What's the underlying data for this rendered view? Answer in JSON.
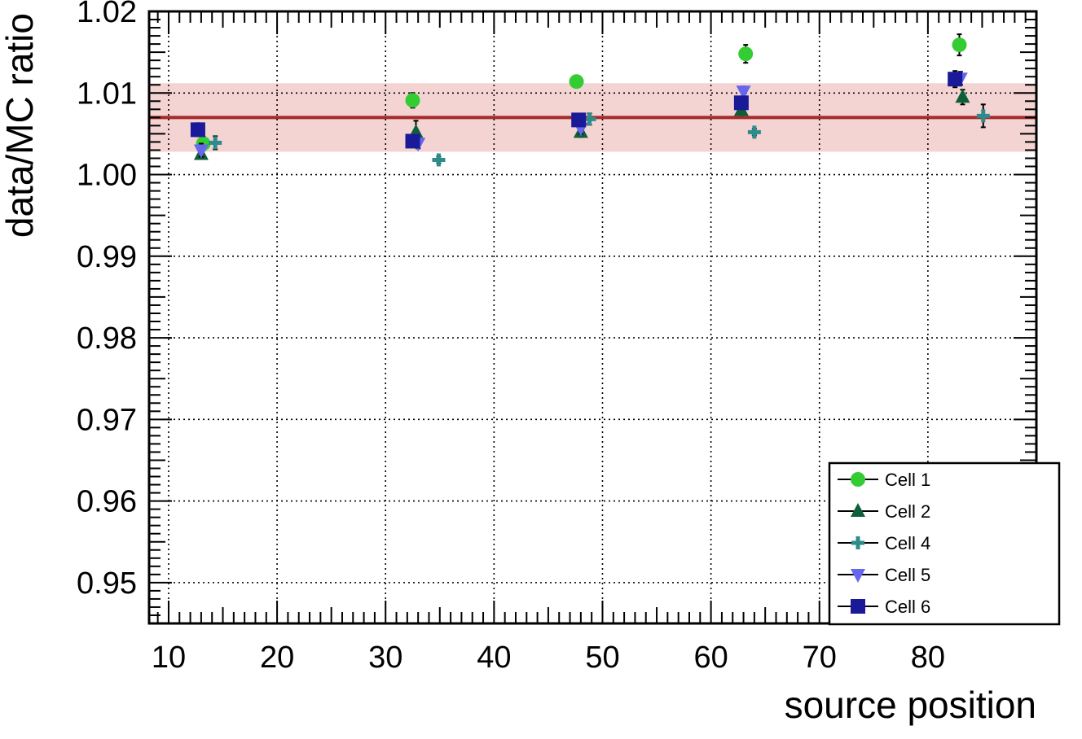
{
  "chart_data": {
    "type": "scatter",
    "xlabel": "source position",
    "ylabel": "data/MC ratio",
    "xlim": [
      8.2,
      90
    ],
    "ylim": [
      0.945,
      1.02
    ],
    "xticks": [
      10,
      20,
      30,
      40,
      50,
      60,
      70,
      80
    ],
    "xtick_labels": [
      "10",
      "20",
      "30",
      "40",
      "50",
      "60",
      "70",
      "80"
    ],
    "yticks": [
      0.95,
      0.96,
      0.97,
      0.98,
      0.99,
      1.0,
      1.01,
      1.02
    ],
    "ytick_labels": [
      "0.95",
      "0.96",
      "0.97",
      "0.98",
      "0.99",
      "1.00",
      "1.01",
      "1.02"
    ],
    "grid": true,
    "legend_position": "bottom-right",
    "reference_line": {
      "y": 1.007,
      "band": [
        1.0028,
        1.0112
      ],
      "line_color": "#a52a2a",
      "band_color": "#f4d3d3"
    },
    "series": [
      {
        "name": "Cell 1",
        "marker": "circle",
        "color": "#33cc33",
        "x": [
          13.2,
          32.5,
          47.6,
          63.2,
          82.9
        ],
        "y": [
          1.0038,
          1.0091,
          1.0114,
          1.0148,
          1.0159
        ],
        "err": [
          0.0008,
          0.0009,
          0.0006,
          0.0011,
          0.0013
        ]
      },
      {
        "name": "Cell 2",
        "marker": "triangle-up",
        "color": "#0d5f3a",
        "x": [
          13.0,
          32.8,
          48.0,
          62.8,
          83.2
        ],
        "y": [
          1.0025,
          1.0052,
          1.0052,
          1.0079,
          1.0095
        ],
        "err": [
          0.0006,
          0.0014,
          0.0006,
          0.0006,
          0.0009
        ]
      },
      {
        "name": "Cell 4",
        "marker": "plus",
        "color": "#2e8b8b",
        "x": [
          14.3,
          34.9,
          48.8,
          64.0,
          85.1
        ],
        "y": [
          1.0039,
          1.0018,
          1.0068,
          1.0052,
          1.0072
        ],
        "err": [
          0.0008,
          0.0004,
          0.0007,
          0.0004,
          0.0014
        ]
      },
      {
        "name": "Cell 5",
        "marker": "triangle-down",
        "color": "#6666ee",
        "x": [
          13.0,
          33.0,
          48.0,
          63.0,
          83.0
        ],
        "y": [
          1.003,
          1.0038,
          1.0057,
          1.0102,
          1.0118
        ],
        "err": [
          0.0008,
          0.0006,
          0.0007,
          0.0006,
          0.0008
        ]
      },
      {
        "name": "Cell 6",
        "marker": "square",
        "color": "#1a1a99",
        "x": [
          12.7,
          32.5,
          47.8,
          62.8,
          82.5
        ],
        "y": [
          1.0055,
          1.0041,
          1.0067,
          1.0088,
          1.0117
        ],
        "err": [
          0.0008,
          0.0006,
          0.0007,
          0.0007,
          0.001
        ]
      }
    ]
  }
}
